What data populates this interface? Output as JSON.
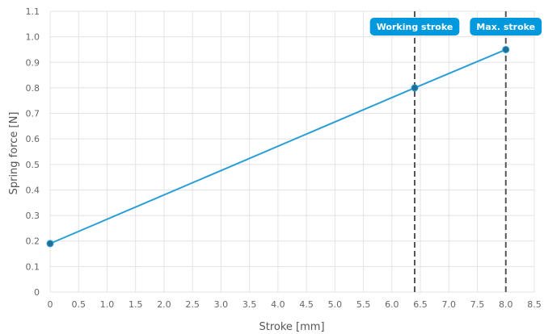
{
  "chart_data": {
    "type": "line",
    "xlabel": "Stroke [mm]",
    "ylabel": "Spring force [N]",
    "xlim": [
      0,
      8.5
    ],
    "ylim": [
      0,
      1.1
    ],
    "x_ticks": [
      "0",
      "0.5",
      "1.0",
      "1.5",
      "2.0",
      "2.5",
      "3.0",
      "3.5",
      "4.0",
      "4.5",
      "5.0",
      "5.5",
      "6.0",
      "6.5",
      "7.0",
      "7.5",
      "8.0",
      "8.5"
    ],
    "y_ticks": [
      "0",
      "0.1",
      "0.2",
      "0.3",
      "0.4",
      "0.5",
      "0.6",
      "0.7",
      "0.8",
      "0.9",
      "1.0",
      "1.1"
    ],
    "grid": true,
    "series": [
      {
        "x": [
          0,
          6.4,
          8.0
        ],
        "y": [
          0.19,
          0.8,
          0.95
        ],
        "color": "#2a9fd6"
      }
    ],
    "annotations": [
      {
        "label": "Working stroke",
        "x": 6.4
      },
      {
        "label": "Max. stroke",
        "x": 8.0
      }
    ],
    "annotation_color": "#0099dd"
  }
}
